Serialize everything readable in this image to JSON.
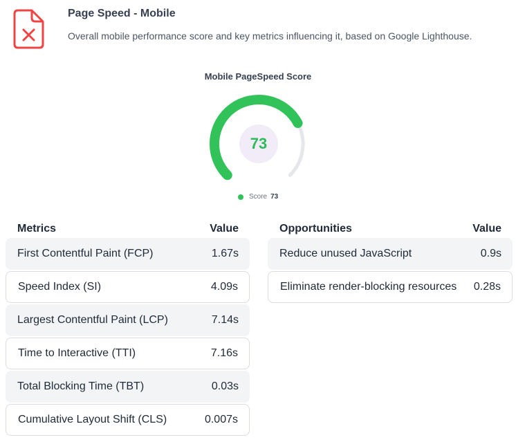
{
  "header": {
    "title": "Page Speed - Mobile",
    "subtitle": "Overall mobile performance score and key metrics influencing it, based on Google Lighthouse.",
    "icon": "file-error-icon",
    "icon_color": "#ef4444"
  },
  "gauge": {
    "title": "Mobile PageSpeed Score",
    "score": "73",
    "score_fraction": 0.73,
    "legend_label": "Score",
    "legend_value": "73",
    "colors": {
      "fill": "#31c359",
      "track": "#e5e7eb",
      "center": "#f1ecf8",
      "score_text": "#2fba5a"
    }
  },
  "metrics": {
    "header_name": "Metrics",
    "header_value": "Value",
    "rows": [
      {
        "name": "First Contentful Paint (FCP)",
        "value": "1.67s"
      },
      {
        "name": "Speed Index (SI)",
        "value": "4.09s"
      },
      {
        "name": "Largest Contentful Paint (LCP)",
        "value": "7.14s"
      },
      {
        "name": "Time to Interactive (TTI)",
        "value": "7.16s"
      },
      {
        "name": "Total Blocking Time (TBT)",
        "value": "0.03s"
      },
      {
        "name": "Cumulative Layout Shift (CLS)",
        "value": "0.007s"
      }
    ]
  },
  "opportunities": {
    "header_name": "Opportunities",
    "header_value": "Value",
    "rows": [
      {
        "name": "Reduce unused JavaScript",
        "value": "0.9s"
      },
      {
        "name": "Eliminate render-blocking resources",
        "value": "0.28s"
      }
    ]
  }
}
